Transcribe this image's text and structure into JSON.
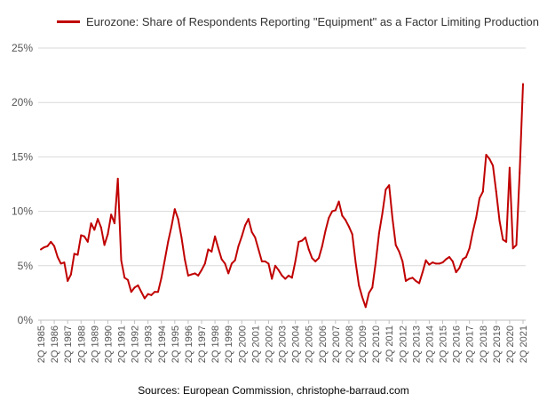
{
  "colors": {
    "series": "#c00000",
    "grid": "#d9d9d9",
    "axis": "#bfbfbf",
    "text": "#555555"
  },
  "source_text": "Sources: European Commission, christophe-barraud.com",
  "chart_data": {
    "type": "line",
    "title": "",
    "xlabel": "",
    "ylabel": "",
    "ylim": [
      0,
      25
    ],
    "y_ticks": [
      "0%",
      "5%",
      "10%",
      "15%",
      "20%",
      "25%"
    ],
    "y_tick_values": [
      0,
      5,
      10,
      15,
      20,
      25
    ],
    "legend_position": "top-left",
    "grid": true,
    "x_tick_labels": [
      "2Q 1985",
      "2Q 1986",
      "2Q 1987",
      "2Q 1988",
      "2Q 1989",
      "2Q 1990",
      "2Q 1991",
      "2Q 1992",
      "2Q 1993",
      "2Q 1994",
      "2Q 1995",
      "2Q 1996",
      "2Q 1997",
      "2Q 1998",
      "2Q 1999",
      "2Q 2000",
      "2Q 2001",
      "2Q 2002",
      "2Q 2003",
      "2Q 2004",
      "2Q 2005",
      "2Q 2006",
      "2Q 2007",
      "2Q 2008",
      "2Q 2009",
      "2Q 2010",
      "2Q 2011",
      "2Q 2012",
      "2Q 2013",
      "2Q 2014",
      "2Q 2015",
      "2Q 2016",
      "2Q 2017",
      "2Q 2018",
      "2Q 2019",
      "2Q 2020",
      "2Q 2021"
    ],
    "series": [
      {
        "name": "Eurozone: Share of Respondents Reporting \"Equipment\" as a Factor Limiting Production",
        "start": "2Q 1985",
        "frequency": "quarterly",
        "values": [
          6.5,
          6.7,
          6.8,
          7.2,
          6.8,
          5.8,
          5.2,
          5.3,
          3.6,
          4.2,
          6.1,
          6.0,
          7.8,
          7.7,
          7.2,
          8.9,
          8.3,
          9.3,
          8.5,
          6.9,
          7.9,
          9.7,
          8.9,
          13.0,
          5.5,
          3.9,
          3.7,
          2.6,
          3.0,
          3.2,
          2.6,
          2.0,
          2.4,
          2.3,
          2.6,
          2.6,
          3.9,
          5.5,
          7.2,
          8.6,
          10.2,
          9.3,
          7.6,
          5.6,
          4.1,
          4.2,
          4.3,
          4.1,
          4.6,
          5.2,
          6.5,
          6.3,
          7.7,
          6.6,
          5.6,
          5.2,
          4.3,
          5.2,
          5.5,
          6.8,
          7.7,
          8.7,
          9.3,
          8.1,
          7.6,
          6.5,
          5.4,
          5.4,
          5.2,
          3.8,
          5.0,
          4.6,
          4.1,
          3.8,
          4.1,
          3.9,
          5.4,
          7.2,
          7.3,
          7.6,
          6.5,
          5.7,
          5.4,
          5.7,
          6.8,
          8.2,
          9.4,
          10.0,
          10.1,
          10.9,
          9.6,
          9.2,
          8.6,
          7.9,
          5.3,
          3.2,
          2.1,
          1.2,
          2.5,
          3.0,
          5.3,
          8.0,
          9.8,
          12.0,
          12.4,
          9.4,
          6.9,
          6.3,
          5.4,
          3.6,
          3.8,
          3.9,
          3.6,
          3.4,
          4.4,
          5.5,
          5.1,
          5.3,
          5.2,
          5.2,
          5.3,
          5.6,
          5.8,
          5.4,
          4.4,
          4.8,
          5.6,
          5.8,
          6.6,
          8.1,
          9.4,
          11.2,
          11.8,
          15.2,
          14.8,
          14.2,
          11.8,
          9.1,
          7.4,
          7.2,
          14.0,
          6.6,
          6.9,
          13.5,
          21.7
        ]
      }
    ]
  }
}
